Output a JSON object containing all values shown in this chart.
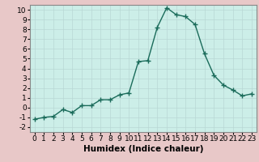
{
  "x": [
    0,
    1,
    2,
    3,
    4,
    5,
    6,
    7,
    8,
    9,
    10,
    11,
    12,
    13,
    14,
    15,
    16,
    17,
    18,
    19,
    20,
    21,
    22,
    23
  ],
  "y": [
    -1.2,
    -1.0,
    -0.9,
    -0.2,
    -0.5,
    0.2,
    0.2,
    0.8,
    0.8,
    1.3,
    1.5,
    4.7,
    4.8,
    8.2,
    10.2,
    9.5,
    9.3,
    8.5,
    5.5,
    3.3,
    2.3,
    1.8,
    1.2,
    1.4
  ],
  "xlabel": "Humidex (Indice chaleur)",
  "xlim": [
    -0.5,
    23.5
  ],
  "ylim": [
    -2.5,
    10.5
  ],
  "yticks": [
    -2,
    -1,
    0,
    1,
    2,
    3,
    4,
    5,
    6,
    7,
    8,
    9,
    10
  ],
  "xticks": [
    0,
    1,
    2,
    3,
    4,
    5,
    6,
    7,
    8,
    9,
    10,
    11,
    12,
    13,
    14,
    15,
    16,
    17,
    18,
    19,
    20,
    21,
    22,
    23
  ],
  "line_color": "#1a6b5a",
  "marker": "+",
  "marker_size": 4,
  "marker_lw": 1.0,
  "line_width": 1.0,
  "bg_color": "#cceee8",
  "grid_color": "#b8d8d4",
  "fig_bg": "#e8c8c8",
  "tick_fontsize": 6.5,
  "xlabel_fontsize": 7.5,
  "xlabel_fontweight": "bold"
}
